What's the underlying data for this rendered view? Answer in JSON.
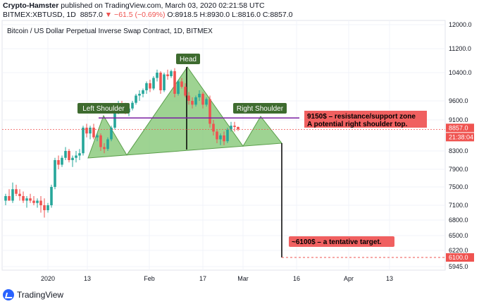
{
  "header": {
    "author": "Crypto-Hamster",
    "published_text": "published on TradingView.com, March 03, 2020 02:21:58 UTC",
    "symbol": "BITMEX:XBTUSD, 1D",
    "last": "8857.0",
    "change": "▼ −61.5 (−0.69%)",
    "open": "O:8918.5",
    "high": "H:8930.0",
    "low": "L:8816.0",
    "close": "C:8857.0"
  },
  "footer": {
    "brand": "TradingView"
  },
  "colors": {
    "up": "#26a69a",
    "down": "#ef5350",
    "pattern_fill": "#7ec46d",
    "neckline": "#7b1fa2",
    "label_green": "#3e6b2f",
    "label_red": "#f06060"
  },
  "chart_data": {
    "type": "candlestick",
    "title": "Bitcoin / US Dollar Perpetual Inverse Swap Contract, 1D, BITMEX",
    "y_ticks": [
      "12000.0",
      "11200.0",
      "10400.0",
      "9600.0",
      "9100.0",
      "8300.0",
      "7900.0",
      "7500.0",
      "7100.0",
      "6800.0",
      "6500.0",
      "6220.0",
      "5945.0"
    ],
    "x_ticks": [
      "2020",
      "13",
      "Feb",
      "17",
      "Mar",
      "16",
      "Apr",
      "13"
    ],
    "price_labels": {
      "last": "8857.0",
      "countdown": "21:38:04",
      "target": "6100.0"
    },
    "resistance_level": 9150,
    "target_level": 6100,
    "annotations": {
      "left_shoulder": "Left Shoulder",
      "head": "Head",
      "right_shoulder": "Right Shoulder",
      "resistance_line1": "9150$ – resistance/support zone",
      "resistance_line2": "A potential right shoulder top.",
      "target": "~6100$ – a tentative target."
    },
    "candles": [
      {
        "o": 7200,
        "h": 7350,
        "l": 7100,
        "c": 7300
      },
      {
        "o": 7300,
        "h": 7450,
        "l": 7200,
        "c": 7200
      },
      {
        "o": 7200,
        "h": 7600,
        "l": 7150,
        "c": 7450
      },
      {
        "o": 7450,
        "h": 7550,
        "l": 7300,
        "c": 7350
      },
      {
        "o": 7350,
        "h": 7450,
        "l": 7200,
        "c": 7300
      },
      {
        "o": 7300,
        "h": 7400,
        "l": 7150,
        "c": 7200
      },
      {
        "o": 7200,
        "h": 7300,
        "l": 7050,
        "c": 7250
      },
      {
        "o": 7250,
        "h": 7350,
        "l": 7150,
        "c": 7200
      },
      {
        "o": 7200,
        "h": 7300,
        "l": 7100,
        "c": 7150
      },
      {
        "o": 7150,
        "h": 7250,
        "l": 7050,
        "c": 7200
      },
      {
        "o": 7200,
        "h": 7300,
        "l": 6950,
        "c": 7100
      },
      {
        "o": 7100,
        "h": 7250,
        "l": 6850,
        "c": 7000
      },
      {
        "o": 7000,
        "h": 7150,
        "l": 6950,
        "c": 7100
      },
      {
        "o": 7100,
        "h": 7550,
        "l": 7050,
        "c": 7500
      },
      {
        "o": 7500,
        "h": 8150,
        "l": 7450,
        "c": 8100
      },
      {
        "o": 8100,
        "h": 8200,
        "l": 7900,
        "c": 8000
      },
      {
        "o": 8000,
        "h": 8200,
        "l": 7950,
        "c": 8150
      },
      {
        "o": 8150,
        "h": 8400,
        "l": 8100,
        "c": 8300
      },
      {
        "o": 8300,
        "h": 8350,
        "l": 8050,
        "c": 8100
      },
      {
        "o": 8100,
        "h": 8200,
        "l": 7950,
        "c": 8150
      },
      {
        "o": 8150,
        "h": 8300,
        "l": 8050,
        "c": 8200
      },
      {
        "o": 8200,
        "h": 8350,
        "l": 8100,
        "c": 8250
      },
      {
        "o": 8250,
        "h": 8950,
        "l": 8200,
        "c": 8900
      },
      {
        "o": 8900,
        "h": 9000,
        "l": 8650,
        "c": 8750
      },
      {
        "o": 8750,
        "h": 8950,
        "l": 8600,
        "c": 8900
      },
      {
        "o": 8900,
        "h": 9000,
        "l": 8600,
        "c": 8650
      },
      {
        "o": 8650,
        "h": 8750,
        "l": 8550,
        "c": 8700
      },
      {
        "o": 8700,
        "h": 8750,
        "l": 8300,
        "c": 8400
      },
      {
        "o": 8400,
        "h": 8500,
        "l": 8250,
        "c": 8350
      },
      {
        "o": 8350,
        "h": 8650,
        "l": 8300,
        "c": 8600
      },
      {
        "o": 8600,
        "h": 8950,
        "l": 8550,
        "c": 8900
      },
      {
        "o": 8900,
        "h": 9450,
        "l": 8850,
        "c": 9350
      },
      {
        "o": 9350,
        "h": 9600,
        "l": 9250,
        "c": 9500
      },
      {
        "o": 9500,
        "h": 9600,
        "l": 9300,
        "c": 9400
      },
      {
        "o": 9400,
        "h": 9550,
        "l": 9250,
        "c": 9300
      },
      {
        "o": 9300,
        "h": 9450,
        "l": 9200,
        "c": 9400
      },
      {
        "o": 9400,
        "h": 9600,
        "l": 9350,
        "c": 9550
      },
      {
        "o": 9550,
        "h": 9800,
        "l": 9500,
        "c": 9750
      },
      {
        "o": 9750,
        "h": 9900,
        "l": 9600,
        "c": 9800
      },
      {
        "o": 9800,
        "h": 9950,
        "l": 9700,
        "c": 9900
      },
      {
        "o": 9900,
        "h": 10150,
        "l": 9800,
        "c": 10100
      },
      {
        "o": 10100,
        "h": 10200,
        "l": 9850,
        "c": 9950
      },
      {
        "o": 9950,
        "h": 10300,
        "l": 9900,
        "c": 10250
      },
      {
        "o": 10250,
        "h": 10500,
        "l": 10150,
        "c": 10400
      },
      {
        "o": 10400,
        "h": 10450,
        "l": 9800,
        "c": 9900
      },
      {
        "o": 9900,
        "h": 10400,
        "l": 9850,
        "c": 10350
      },
      {
        "o": 10350,
        "h": 10500,
        "l": 10200,
        "c": 10300
      },
      {
        "o": 10300,
        "h": 10500,
        "l": 10250,
        "c": 10450
      },
      {
        "o": 10450,
        "h": 10550,
        "l": 9700,
        "c": 9800
      },
      {
        "o": 9800,
        "h": 10200,
        "l": 9750,
        "c": 10150
      },
      {
        "o": 10150,
        "h": 10250,
        "l": 9950,
        "c": 10000
      },
      {
        "o": 10000,
        "h": 10100,
        "l": 9700,
        "c": 9750
      },
      {
        "o": 9750,
        "h": 9850,
        "l": 9500,
        "c": 9600
      },
      {
        "o": 9600,
        "h": 9700,
        "l": 9400,
        "c": 9500
      },
      {
        "o": 9500,
        "h": 9750,
        "l": 9450,
        "c": 9700
      },
      {
        "o": 9700,
        "h": 9900,
        "l": 9600,
        "c": 9800
      },
      {
        "o": 9800,
        "h": 9850,
        "l": 9400,
        "c": 9500
      },
      {
        "o": 9500,
        "h": 9700,
        "l": 9450,
        "c": 9650
      },
      {
        "o": 9650,
        "h": 9750,
        "l": 8900,
        "c": 9000
      },
      {
        "o": 9000,
        "h": 9100,
        "l": 8700,
        "c": 8800
      },
      {
        "o": 8800,
        "h": 8850,
        "l": 8500,
        "c": 8600
      },
      {
        "o": 8600,
        "h": 8750,
        "l": 8450,
        "c": 8700
      },
      {
        "o": 8700,
        "h": 8800,
        "l": 8450,
        "c": 8550
      },
      {
        "o": 8550,
        "h": 8900,
        "l": 8500,
        "c": 8850
      },
      {
        "o": 8850,
        "h": 9050,
        "l": 8800,
        "c": 8950
      },
      {
        "o": 8950,
        "h": 9050,
        "l": 8800,
        "c": 8918
      },
      {
        "o": 8918,
        "h": 8930,
        "l": 8816,
        "c": 8857
      }
    ]
  }
}
